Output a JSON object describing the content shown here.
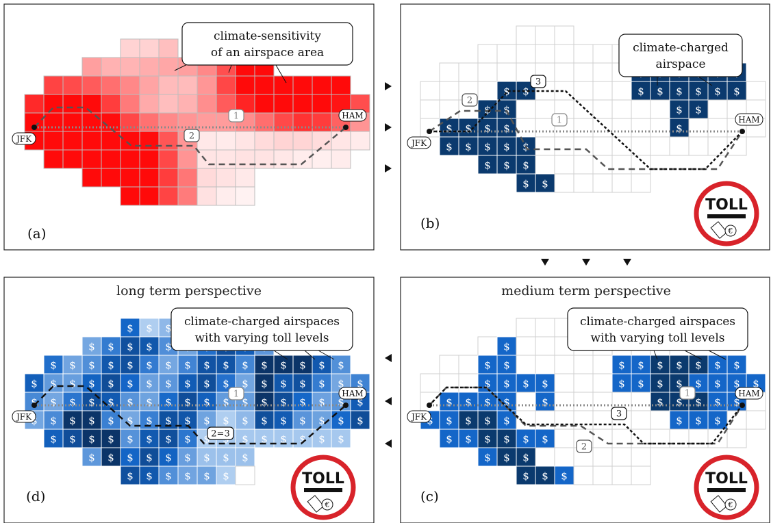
{
  "panels": {
    "a": {
      "label": "(a)",
      "callout": [
        "climate-sensitivity",
        "of an airspace area"
      ],
      "routes": [
        "1",
        "2"
      ]
    },
    "b": {
      "label": "(b)",
      "callout": [
        "climate-charged",
        "airspace"
      ],
      "routes": [
        "1",
        "2",
        "3"
      ]
    },
    "c": {
      "label": "(c)",
      "title": "medium term perspective",
      "callout": [
        "climate-charged airspaces",
        "with varying toll levels"
      ],
      "routes": [
        "1",
        "2",
        "3"
      ]
    },
    "d": {
      "label": "(d)",
      "title": "long term perspective",
      "callout": [
        "climate-charged airspaces",
        "with varying toll levels"
      ],
      "routes": [
        "1",
        "2=3"
      ]
    }
  },
  "airports": {
    "origin": "JFK",
    "destination": "HAM"
  },
  "toll_sign": {
    "text": "TOLL",
    "coins": "€",
    "ring_color": "#d8232a"
  },
  "cell_symbol": "$",
  "colors": {
    "sensitivity_max": "#ff1a1a",
    "charge_dark": "#0b3a6e",
    "charge_mid": "#1466c8",
    "charge_light": "#9cc3ee"
  }
}
